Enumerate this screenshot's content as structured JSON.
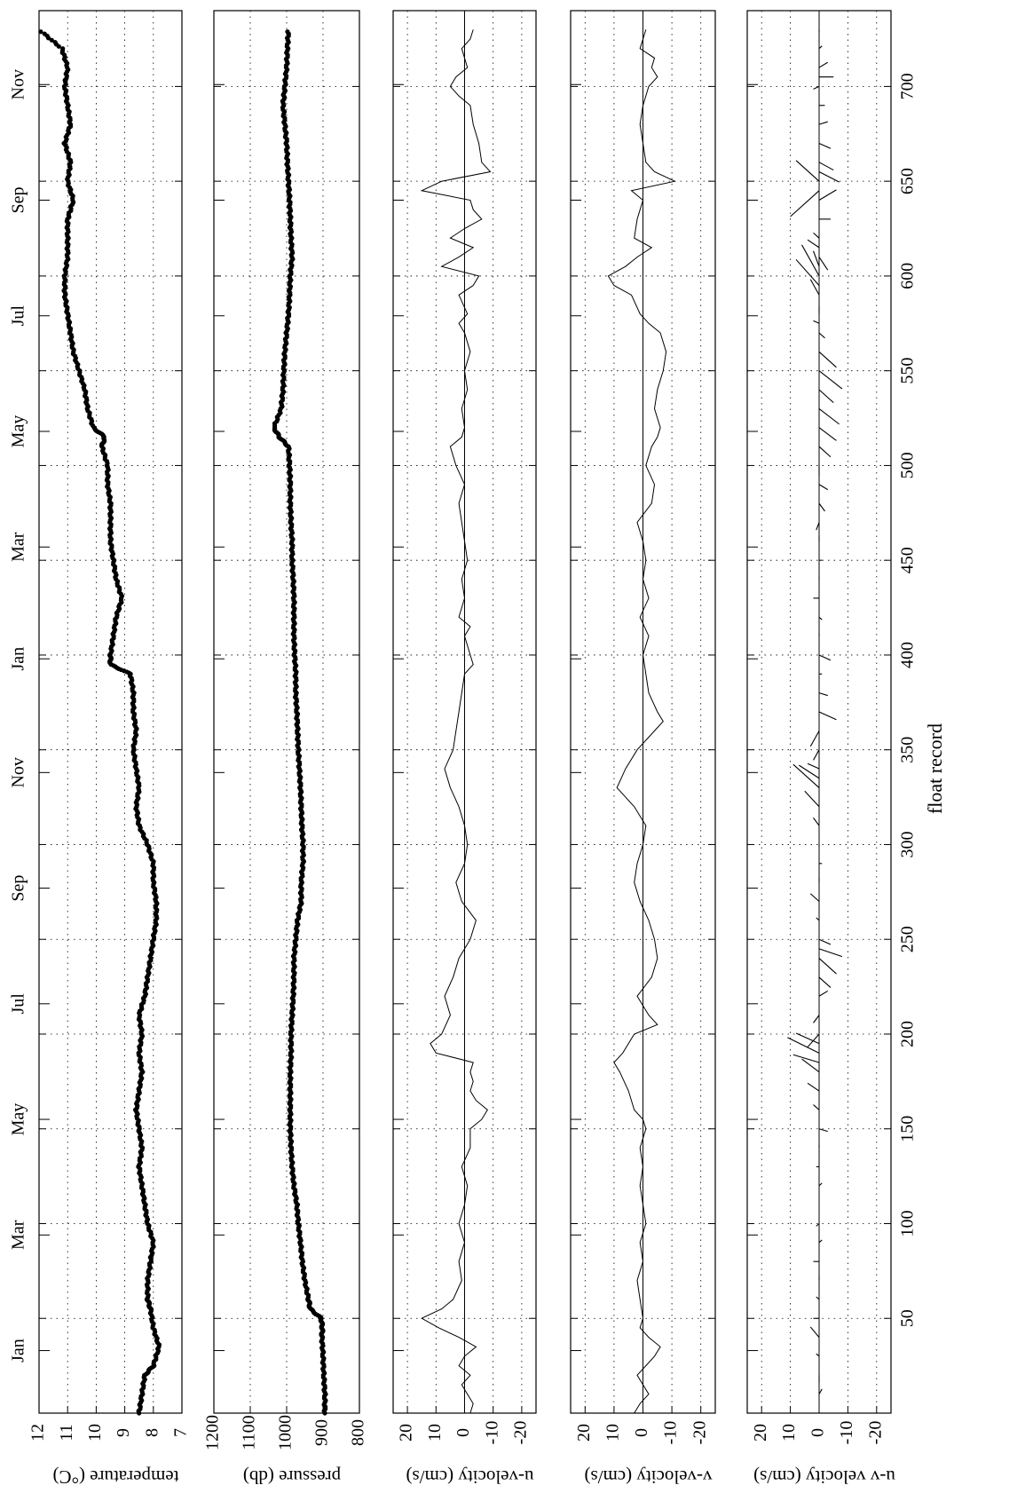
{
  "chart_data": [
    {
      "type": "scatter",
      "ylabel": "temperature (°C)",
      "ylim": [
        7,
        12
      ],
      "yticks": [
        7,
        8,
        9,
        10,
        11,
        12
      ],
      "xlim": [
        0,
        740
      ],
      "series": [
        {
          "x": [
            0,
            10,
            20,
            25,
            35,
            45,
            55,
            60,
            70,
            80,
            90,
            100,
            110,
            120,
            130,
            140,
            150,
            160,
            170,
            180,
            190,
            200,
            210,
            220,
            230,
            240,
            250,
            260,
            270,
            280,
            290,
            300,
            310,
            320,
            330,
            340,
            350,
            360,
            370,
            380,
            390,
            395,
            400,
            410,
            420,
            430,
            440,
            450,
            460,
            470,
            480,
            490,
            500,
            510,
            515,
            520,
            530,
            540,
            550,
            560,
            570,
            580,
            590,
            600,
            610,
            620,
            630,
            640,
            650,
            660,
            670,
            680,
            690,
            700,
            710,
            720,
            730
          ],
          "y": [
            8.5,
            8.4,
            8.3,
            8.0,
            7.8,
            8.0,
            8.1,
            8.2,
            8.2,
            8.1,
            8.0,
            8.2,
            8.3,
            8.4,
            8.5,
            8.4,
            8.5,
            8.6,
            8.5,
            8.4,
            8.5,
            8.4,
            8.5,
            8.3,
            8.2,
            8.1,
            8.0,
            7.9,
            7.9,
            8.0,
            8.0,
            8.2,
            8.5,
            8.6,
            8.5,
            8.6,
            8.7,
            8.6,
            8.7,
            8.7,
            8.8,
            9.5,
            9.5,
            9.4,
            9.3,
            9.1,
            9.3,
            9.4,
            9.5,
            9.5,
            9.5,
            9.6,
            9.6,
            9.8,
            9.7,
            10.1,
            10.3,
            10.4,
            10.6,
            10.8,
            10.9,
            11.0,
            11.1,
            11.1,
            11.0,
            11.0,
            11.0,
            10.8,
            11.0,
            10.9,
            11.1,
            10.9,
            11.0,
            11.1,
            11.0,
            11.2,
            12.0
          ]
        }
      ]
    },
    {
      "type": "scatter",
      "ylabel": "pressure (db)",
      "ylim": [
        800,
        1200
      ],
      "yticks": [
        800,
        900,
        1000,
        1100,
        1200
      ],
      "xlim": [
        0,
        740
      ],
      "series": [
        {
          "x": [
            0,
            10,
            20,
            30,
            40,
            45,
            50,
            55,
            60,
            70,
            80,
            90,
            100,
            110,
            120,
            130,
            140,
            150,
            160,
            170,
            180,
            190,
            200,
            210,
            220,
            230,
            240,
            250,
            260,
            270,
            280,
            290,
            300,
            310,
            320,
            330,
            340,
            350,
            360,
            370,
            380,
            390,
            400,
            410,
            420,
            430,
            440,
            450,
            460,
            470,
            480,
            490,
            500,
            510,
            515,
            520,
            530,
            540,
            550,
            560,
            570,
            580,
            590,
            600,
            610,
            620,
            630,
            640,
            650,
            660,
            670,
            680,
            690,
            700,
            710,
            720,
            730
          ],
          "y": [
            895,
            895,
            898,
            900,
            903,
            902,
            905,
            935,
            940,
            950,
            957,
            962,
            968,
            972,
            980,
            985,
            988,
            990,
            990,
            990,
            990,
            988,
            988,
            985,
            982,
            980,
            980,
            975,
            970,
            960,
            960,
            955,
            955,
            958,
            960,
            962,
            965,
            968,
            970,
            972,
            975,
            975,
            978,
            980,
            980,
            980,
            982,
            985,
            985,
            988,
            990,
            990,
            992,
            995,
            1020,
            1035,
            1015,
            1010,
            1008,
            1005,
            1000,
            995,
            992,
            990,
            985,
            988,
            990,
            992,
            995,
            998,
            1000,
            1005,
            1010,
            1005,
            1000,
            998,
            995
          ]
        }
      ]
    },
    {
      "type": "line",
      "ylabel": "u-velocity (cm/s)",
      "ylim": [
        -25,
        25
      ],
      "yticks": [
        -20,
        -10,
        0,
        10,
        20
      ],
      "ytick_labels": [
        "-20",
        "-10",
        "0",
        "10",
        "20"
      ],
      "xlim": [
        0,
        740
      ],
      "series": [
        {
          "x": [
            0,
            5,
            10,
            15,
            20,
            25,
            30,
            35,
            40,
            45,
            50,
            55,
            60,
            70,
            80,
            90,
            100,
            110,
            120,
            130,
            140,
            150,
            155,
            160,
            165,
            170,
            175,
            180,
            185,
            190,
            195,
            200,
            210,
            220,
            230,
            240,
            250,
            260,
            270,
            280,
            290,
            300,
            310,
            320,
            330,
            340,
            350,
            360,
            370,
            380,
            390,
            395,
            400,
            410,
            415,
            420,
            430,
            440,
            450,
            460,
            470,
            480,
            490,
            500,
            510,
            515,
            520,
            530,
            540,
            550,
            560,
            570,
            575,
            580,
            590,
            595,
            600,
            605,
            610,
            615,
            620,
            625,
            630,
            635,
            640,
            645,
            650,
            655,
            660,
            670,
            680,
            690,
            695,
            700,
            705,
            710,
            715,
            720,
            725,
            730
          ],
          "y": [
            -2,
            -3,
            -1,
            1,
            -2,
            2,
            0,
            -4,
            2,
            9,
            15,
            8,
            4,
            1,
            2,
            0,
            2,
            0,
            -1,
            1,
            -2,
            -2,
            -6,
            -8,
            -4,
            -2,
            -3,
            -2,
            -3,
            10,
            12,
            8,
            5,
            7,
            4,
            2,
            -2,
            -4,
            1,
            3,
            0,
            -1,
            0,
            2,
            5,
            7,
            4,
            3,
            2,
            1,
            0,
            -3,
            -2,
            0,
            -2,
            2,
            0,
            1,
            -1,
            0,
            1,
            2,
            0,
            3,
            5,
            1,
            0,
            1,
            -1,
            0,
            -2,
            0,
            2,
            -1,
            2,
            -3,
            -5,
            8,
            2,
            -3,
            5,
            0,
            -6,
            -3,
            -2,
            15,
            8,
            -9,
            -6,
            -5,
            -3,
            -2,
            2,
            5,
            3,
            -1,
            0,
            1,
            -2,
            -3
          ]
        }
      ]
    },
    {
      "type": "line",
      "ylabel": "v-velocity (cm/s)",
      "ylim": [
        -25,
        25
      ],
      "yticks": [
        -20,
        -10,
        0,
        10,
        20
      ],
      "ytick_labels": [
        "-20",
        "-10",
        "0",
        "10",
        "20"
      ],
      "xlim": [
        0,
        740
      ],
      "series": [
        {
          "x": [
            0,
            5,
            10,
            15,
            20,
            25,
            30,
            35,
            40,
            45,
            50,
            60,
            70,
            80,
            90,
            100,
            110,
            120,
            130,
            140,
            150,
            155,
            160,
            170,
            180,
            185,
            190,
            200,
            205,
            210,
            220,
            230,
            240,
            250,
            260,
            270,
            280,
            290,
            300,
            310,
            320,
            330,
            340,
            350,
            360,
            365,
            370,
            380,
            390,
            400,
            410,
            420,
            430,
            440,
            450,
            460,
            470,
            480,
            490,
            500,
            510,
            515,
            520,
            530,
            540,
            550,
            560,
            570,
            575,
            580,
            590,
            595,
            600,
            605,
            610,
            615,
            620,
            630,
            640,
            645,
            650,
            655,
            660,
            670,
            680,
            690,
            700,
            705,
            710,
            715,
            720,
            730
          ],
          "y": [
            3,
            1,
            -2,
            0,
            2,
            -1,
            -4,
            -6,
            -2,
            1,
            0,
            1,
            2,
            0,
            1,
            -1,
            0,
            1,
            0,
            1,
            -1,
            0,
            3,
            5,
            8,
            10,
            7,
            3,
            -5,
            -2,
            2,
            -3,
            -5,
            -4,
            -2,
            1,
            3,
            2,
            0,
            -1,
            3,
            9,
            6,
            2,
            -4,
            -7,
            -5,
            -2,
            -1,
            0,
            -2,
            1,
            -2,
            0,
            -1,
            0,
            2,
            -3,
            -4,
            -1,
            -3,
            -5,
            -6,
            -4,
            -5,
            -7,
            -8,
            -6,
            -2,
            1,
            4,
            10,
            12,
            6,
            2,
            -3,
            3,
            2,
            0,
            4,
            -11,
            -4,
            -1,
            0,
            1,
            0,
            -2,
            -5,
            -3,
            -4,
            1,
            -1
          ]
        }
      ]
    },
    {
      "type": "stick",
      "ylabel": "u-v velocity (cm/s)",
      "xlabel": "float record",
      "ylim": [
        -25,
        25
      ],
      "yticks": [
        -20,
        -10,
        0,
        10,
        20
      ],
      "ytick_labels": [
        "-20",
        "-10",
        "0",
        "10",
        "20"
      ],
      "xlim": [
        0,
        740
      ],
      "xticks": [
        50,
        100,
        150,
        200,
        250,
        300,
        350,
        400,
        450,
        500,
        550,
        600,
        650,
        700
      ],
      "xtick_labels": [
        "50",
        "100",
        "150",
        "200",
        "250",
        "300",
        "350",
        "400",
        "450",
        "500",
        "550",
        "600",
        "650",
        "700"
      ],
      "x": [
        10,
        20,
        30,
        40,
        50,
        60,
        70,
        80,
        90,
        100,
        110,
        120,
        130,
        140,
        150,
        160,
        170,
        180,
        185,
        190,
        195,
        200,
        210,
        220,
        230,
        240,
        245,
        250,
        260,
        270,
        280,
        290,
        300,
        310,
        320,
        330,
        335,
        340,
        350,
        360,
        370,
        380,
        390,
        400,
        410,
        420,
        430,
        440,
        450,
        460,
        470,
        480,
        490,
        500,
        510,
        520,
        530,
        540,
        550,
        560,
        570,
        575,
        580,
        590,
        595,
        600,
        605,
        610,
        615,
        620,
        630,
        640,
        645,
        650,
        655,
        660,
        670,
        680,
        690,
        700,
        705,
        710,
        720,
        730
      ],
      "u": [
        -1,
        0,
        1,
        3,
        2,
        1,
        0,
        2,
        -1,
        1,
        0,
        -1,
        1,
        0,
        -3,
        2,
        4,
        6,
        9,
        11,
        8,
        4,
        2,
        -3,
        -4,
        -6,
        -8,
        -4,
        1,
        3,
        0,
        -1,
        0,
        2,
        5,
        9,
        7,
        4,
        2,
        3,
        -6,
        -3,
        -1,
        -4,
        0,
        -1,
        2,
        0,
        -1,
        0,
        1,
        -2,
        -3,
        0,
        -4,
        -6,
        -7,
        -5,
        -8,
        -6,
        -2,
        2,
        0,
        3,
        8,
        6,
        2,
        -3,
        4,
        2,
        -4,
        -6,
        10,
        8,
        -7,
        -5,
        -4,
        -3,
        -2,
        2,
        -5,
        -3,
        -1,
        0
      ],
      "v": [
        2,
        -3,
        1,
        4,
        0,
        1,
        2,
        0,
        1,
        -1,
        0,
        1,
        0,
        1,
        -1,
        2,
        3,
        5,
        3,
        6,
        4,
        -5,
        -3,
        2,
        -4,
        -6,
        -3,
        -2,
        1,
        3,
        2,
        0,
        -1,
        3,
        6,
        9,
        5,
        2,
        -4,
        -6,
        -3,
        -1,
        0,
        -2,
        1,
        -1,
        0,
        1,
        0,
        2,
        -3,
        -3,
        -2,
        -4,
        -4,
        -5,
        -6,
        -5,
        -7,
        -6,
        -2,
        1,
        3,
        6,
        10,
        12,
        6,
        -5,
        3,
        2,
        0,
        4,
        -10,
        8,
        -4,
        -3,
        -2,
        1,
        0,
        -1,
        0,
        2,
        1,
        -1
      ]
    }
  ],
  "top_axis": {
    "months": [
      "Jan",
      "Mar",
      "May",
      "Jul",
      "Sep",
      "Nov",
      "Jan",
      "Mar",
      "May",
      "Jul",
      "Sep",
      "Nov"
    ],
    "month_records": [
      33,
      94,
      155,
      216,
      277,
      338,
      398,
      457,
      518,
      579,
      640,
      701
    ]
  },
  "grid": "dotted"
}
